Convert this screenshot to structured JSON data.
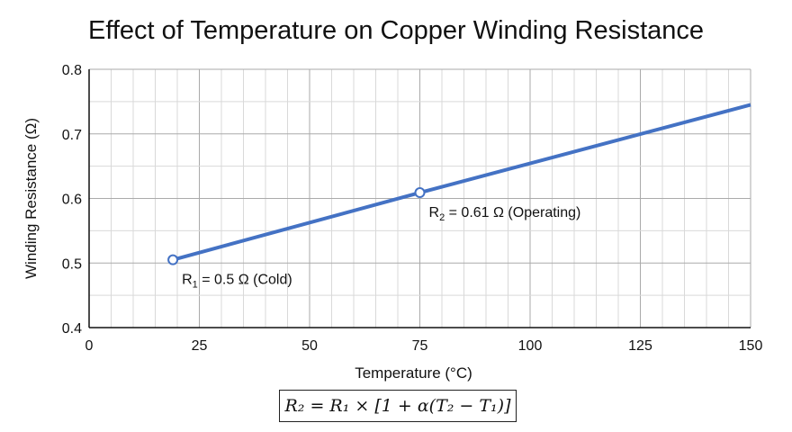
{
  "chart_data": {
    "type": "line",
    "title": "Effect of Temperature on Copper Winding Resistance",
    "xlabel": "Temperature (°C)",
    "ylabel": "Winding Resistance (Ω)",
    "xlim": [
      0,
      150
    ],
    "ylim": [
      0.4,
      0.8
    ],
    "xticks": [
      "0",
      "25",
      "50",
      "75",
      "100",
      "125",
      "150"
    ],
    "yticks": [
      "0.4",
      "0.5",
      "0.6",
      "0.7",
      "0.8"
    ],
    "grid": true,
    "series": [
      {
        "x": [
          19,
          75,
          150
        ],
        "y": [
          0.505,
          0.609,
          0.745
        ],
        "color": "#4472C4"
      }
    ],
    "markers": [
      {
        "x": 19,
        "y": 0.505,
        "label_main": "R",
        "label_sub": "1",
        "label_rest": " = 0.5 Ω (Cold)"
      },
      {
        "x": 75,
        "y": 0.609,
        "label_main": "R",
        "label_sub": "2",
        "label_rest": " = 0.61 Ω (Operating)"
      }
    ],
    "formula": "R₂ = R₁ × [1 + α(T₂ − T₁)]"
  }
}
